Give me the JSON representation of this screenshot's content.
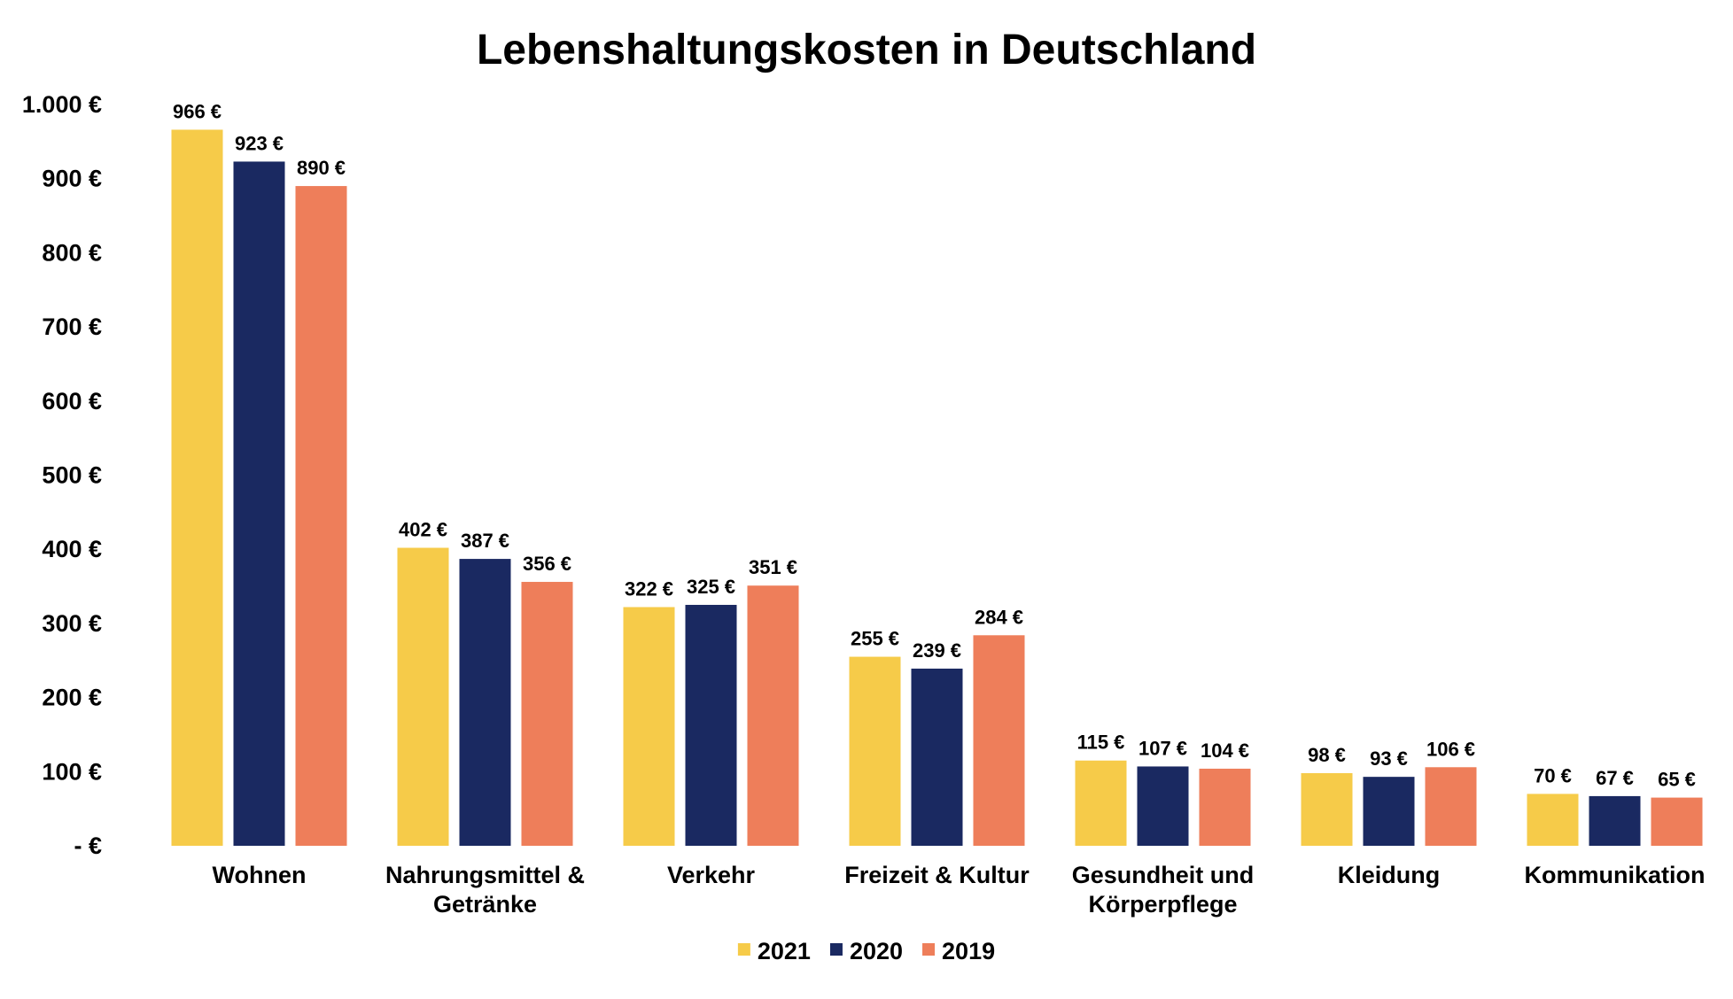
{
  "chart_data": {
    "type": "bar",
    "title": "Lebenshaltungskosten in Deutschland",
    "categories": [
      [
        "Wohnen"
      ],
      [
        "Nahrungsmittel &",
        "Getränke"
      ],
      [
        "Verkehr"
      ],
      [
        "Freizeit & Kultur"
      ],
      [
        "Gesundheit und",
        "Körperpflege"
      ],
      [
        "Kleidung"
      ],
      [
        "Kommunikation"
      ]
    ],
    "series": [
      {
        "name": "2021",
        "color": "#F6CB49",
        "values": [
          966,
          402,
          322,
          255,
          115,
          98,
          70
        ]
      },
      {
        "name": "2020",
        "color": "#1A2961",
        "values": [
          923,
          387,
          325,
          239,
          107,
          93,
          67
        ]
      },
      {
        "name": "2019",
        "color": "#EE7E5A",
        "values": [
          890,
          356,
          351,
          284,
          104,
          106,
          65
        ]
      }
    ],
    "value_suffix": " €",
    "ylim": [
      0,
      1000
    ],
    "yticks": [
      {
        "value": 0,
        "label": "-   €"
      },
      {
        "value": 100,
        "label": "100 €"
      },
      {
        "value": 200,
        "label": "200 €"
      },
      {
        "value": 300,
        "label": "300 €"
      },
      {
        "value": 400,
        "label": "400 €"
      },
      {
        "value": 500,
        "label": "500 €"
      },
      {
        "value": 600,
        "label": "600 €"
      },
      {
        "value": 700,
        "label": "700 €"
      },
      {
        "value": 800,
        "label": "800 €"
      },
      {
        "value": 900,
        "label": "900 €"
      },
      {
        "value": 1000,
        "label": "1.000 €"
      }
    ],
    "grid": false,
    "legend": "bottom-center"
  }
}
